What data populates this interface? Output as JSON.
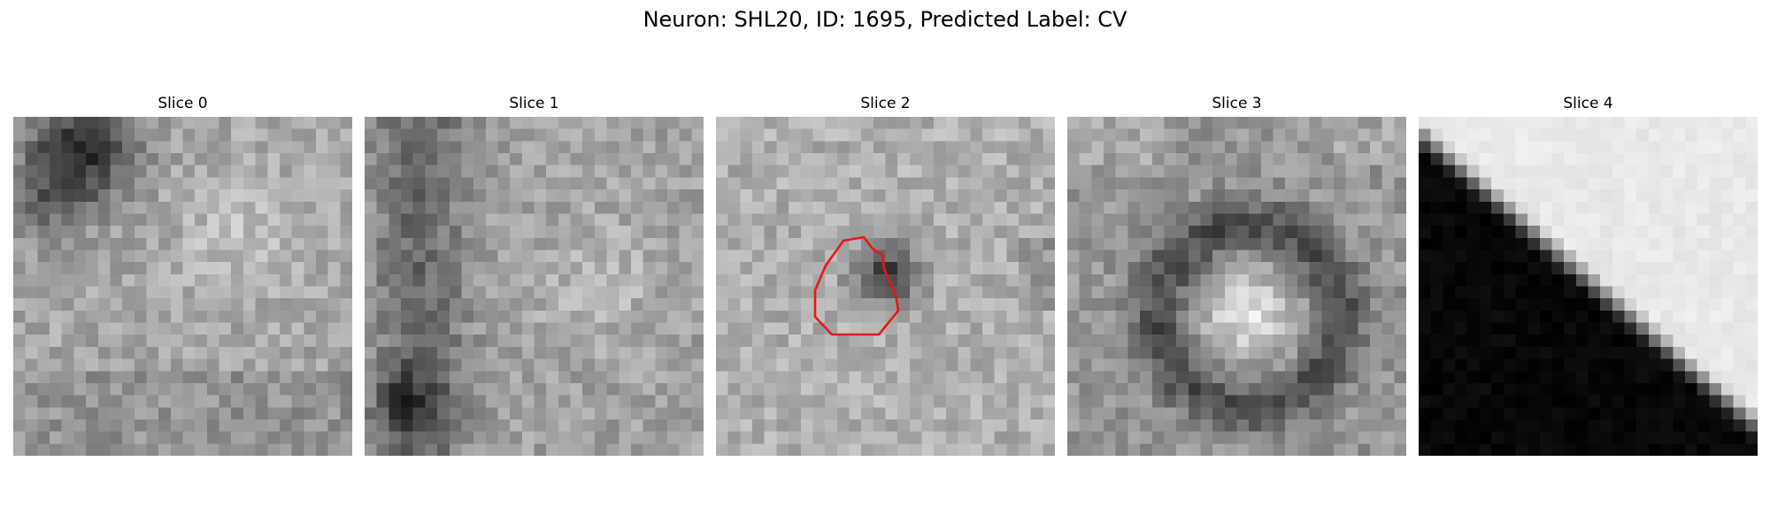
{
  "figure": {
    "title": "Neuron: SHL20, ID: 1695, Predicted Label: CV"
  },
  "panels": [
    {
      "title": "Slice 0",
      "pattern": "dark-top-left-blotch"
    },
    {
      "title": "Slice 1",
      "pattern": "dark-left-band"
    },
    {
      "title": "Slice 2",
      "pattern": "dark-center-spot"
    },
    {
      "title": "Slice 3",
      "pattern": "bright-center-dark-ring"
    },
    {
      "title": "Slice 4",
      "pattern": "diagonal-dark-bottom-left"
    }
  ],
  "outline": {
    "color": "#e8161a",
    "panel": "Slice 2"
  }
}
